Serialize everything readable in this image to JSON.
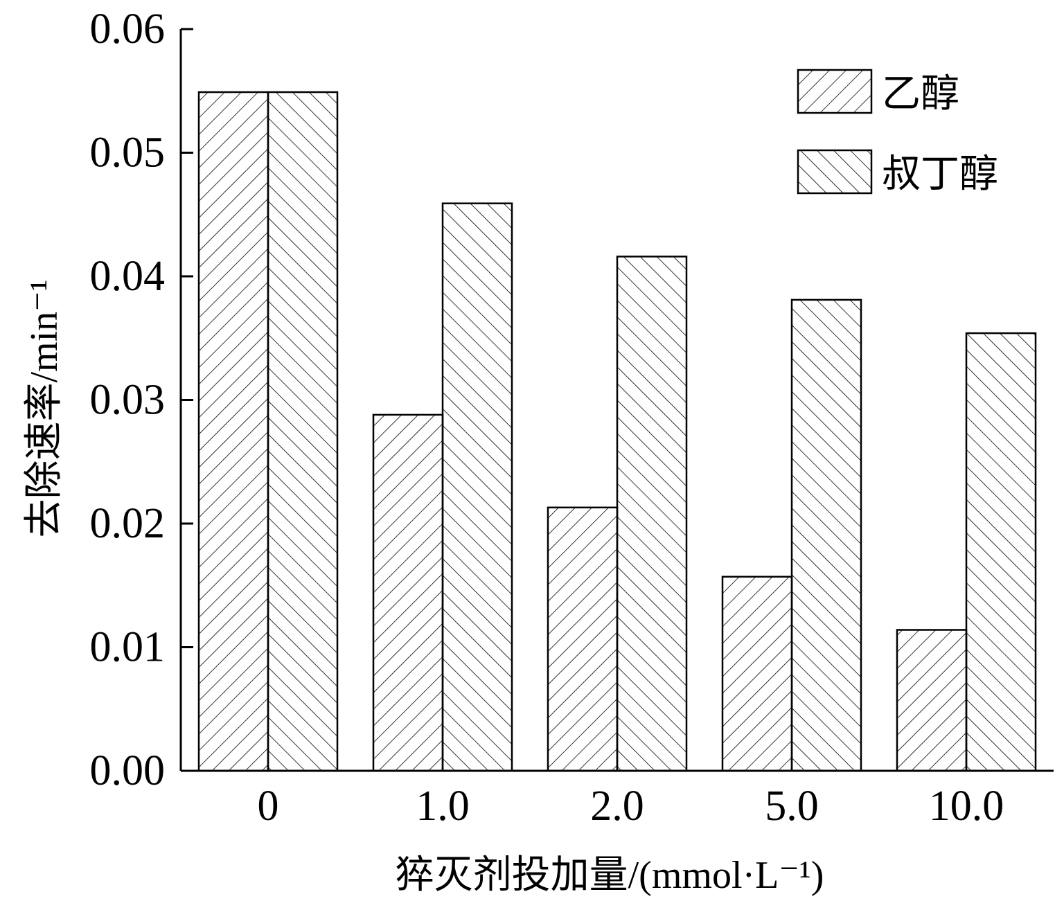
{
  "chart_data": {
    "type": "bar",
    "title": "",
    "xlabel": "猝灭剂投加量/(mmol·L⁻¹)",
    "ylabel": "去除速率/min⁻¹",
    "categories": [
      "0",
      "1.0",
      "2.0",
      "5.0",
      "10.0"
    ],
    "ylim": [
      0,
      0.06
    ],
    "yticks": [
      "0.00",
      "0.01",
      "0.02",
      "0.03",
      "0.04",
      "0.05",
      "0.06"
    ],
    "series": [
      {
        "name": "乙醇",
        "values": [
          0.0549,
          0.0288,
          0.0213,
          0.0157,
          0.0114
        ],
        "pattern": "hatch-forward"
      },
      {
        "name": "叔丁醇",
        "values": [
          0.0549,
          0.0459,
          0.0416,
          0.0381,
          0.0354
        ],
        "pattern": "hatch-backward"
      }
    ],
    "legend_position": "top-right",
    "grid": false,
    "colors": {
      "stroke": "#000000",
      "fill": "#ffffff"
    }
  }
}
